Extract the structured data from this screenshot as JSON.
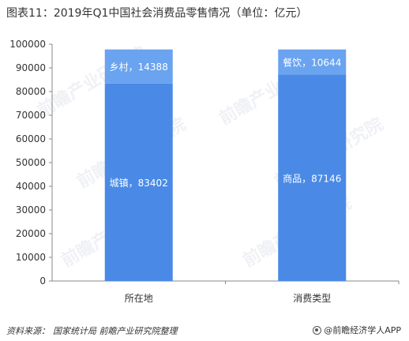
{
  "title": "图表11：2019年Q1中国社会消费品零售情况（单位：亿元）",
  "footer": {
    "source_label": "资料来源：",
    "source_text": "国家统计局 前瞻产业研究院整理",
    "brand": "@前瞻经济学人APP"
  },
  "watermark": "前瞻产业研究院",
  "colors": {
    "bottom": "#4a8ae6",
    "top": "#6aa3ef",
    "axis": "#888888",
    "text": "#333333"
  },
  "chart_data": {
    "type": "bar",
    "stacked": true,
    "categories": [
      "所在地",
      "消费类型"
    ],
    "ylim": [
      0,
      100000
    ],
    "yticks": [
      0,
      10000,
      20000,
      30000,
      40000,
      50000,
      60000,
      70000,
      80000,
      90000,
      100000
    ],
    "segments": [
      [
        {
          "label": "城镇，83402",
          "value": 83402
        },
        {
          "label": "乡村，14388",
          "value": 14388
        }
      ],
      [
        {
          "label": "商品，87146",
          "value": 87146
        },
        {
          "label": "餐饮，10644",
          "value": 10644
        }
      ]
    ],
    "grid": false,
    "legend": "none"
  }
}
